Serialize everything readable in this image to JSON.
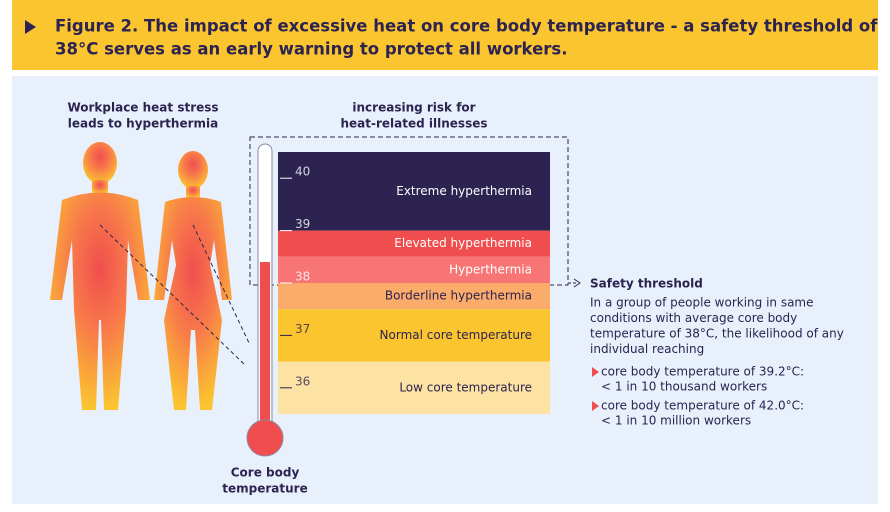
{
  "header": {
    "title_lines": [
      "Figure 2. The impact of excessive heat on core body temperature - a safety threshold of",
      "38°C serves as an early warning to protect all workers."
    ]
  },
  "figures_caption": [
    "Workplace heat stress",
    "leads to hyperthermia"
  ],
  "risk_caption": [
    "increasing risk for",
    "heat-related illnesses"
  ],
  "thermometer": {
    "caption": [
      "Core body",
      "temperature"
    ],
    "level": 38.4,
    "scale_min": 35.5,
    "scale_max": 40.5,
    "ticks": [
      36,
      37,
      38,
      39,
      40
    ],
    "bands": [
      {
        "label": "Extreme hyperthermia",
        "from": 39,
        "to": 40.5,
        "color": "#2c2350",
        "text_color": "#ffffff"
      },
      {
        "label": "Elevated hyperthermia",
        "from": 38.5,
        "to": 39,
        "color": "#f04e4e",
        "text_color": "#ffffff"
      },
      {
        "label": "Hyperthermia",
        "from": 38,
        "to": 38.5,
        "color": "#f87575",
        "text_color": "#ffffff"
      },
      {
        "label": "Borderline hyperthermia",
        "from": 37.5,
        "to": 38,
        "color": "#fbab6a",
        "text_color": "#2c2350"
      },
      {
        "label": "Normal core temperature",
        "from": 36.5,
        "to": 37.5,
        "color": "#fbc52f",
        "text_color": "#2c2350"
      },
      {
        "label": "Low core temperature",
        "from": 35.5,
        "to": 36.5,
        "color": "#fde3a3",
        "text_color": "#2c2350"
      }
    ]
  },
  "safety": {
    "title": "Safety threshold",
    "text_lines": [
      "In a group of people working in same",
      "conditions with average core body",
      "temperature of 38°C, the likelihood of any",
      "individual reaching"
    ],
    "bullets": [
      [
        "core body temperature of 39.2°C:",
        "< 1 in 10 thousand workers"
      ],
      [
        "core body temperature of 42.0°C:",
        "< 1 in 10 million workers"
      ]
    ]
  }
}
